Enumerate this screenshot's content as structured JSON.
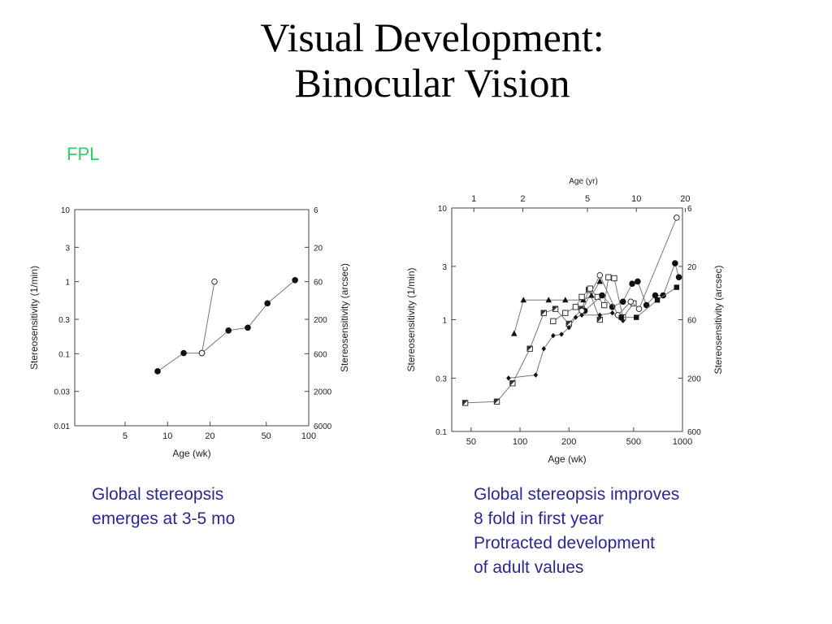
{
  "slide": {
    "title_line1": "Visual Development:",
    "title_line2": "Binocular Vision",
    "method_label": "FPL",
    "caption_left": [
      "Global stereopsis",
      "emerges at 3-5 mo"
    ],
    "caption_right": [
      "Global stereopsis improves",
      "8 fold in first year",
      "Protracted development",
      "of adult values"
    ]
  },
  "chart_data": [
    {
      "type": "line",
      "xlabel": "Age (wk)",
      "ylabel": "Stereosensitivity (1/min)",
      "ylabel_right": "Stereosensitivity (arcsec)",
      "xscale": "log",
      "yscale": "log",
      "xlim": [
        2.2,
        100
      ],
      "ylim": [
        0.01,
        10
      ],
      "x_ticks": [
        5,
        10,
        20,
        50,
        100
      ],
      "x_tick_labels": [
        "5",
        "10",
        "20",
        "50",
        "100"
      ],
      "y_ticks": [
        10,
        3,
        1,
        0.3,
        0.1,
        0.03,
        0.01
      ],
      "y_tick_labels": [
        "10",
        "3",
        "1",
        "0.3",
        "0.1",
        "0.03",
        "0.01"
      ],
      "y_right_tick_labels": [
        "6",
        "20",
        "60",
        "200",
        "600",
        "2000",
        "6000"
      ],
      "grid": false,
      "series": [
        {
          "marker": "filled-circle",
          "x": [
            8.5,
            13,
            17.5,
            27,
            37,
            51,
            80
          ],
          "y": [
            0.057,
            0.102,
            0.102,
            0.21,
            0.23,
            0.5,
            1.05
          ]
        },
        {
          "marker": "open-circle",
          "x": [
            17.5,
            21.5
          ],
          "y": [
            0.102,
            1.0
          ]
        }
      ]
    },
    {
      "type": "line",
      "xlabel": "Age (wk)",
      "xlabel_top": "Age (yr)",
      "ylabel": "Stereosensitivity (1/min)",
      "ylabel_right": "Stereosensitivity (arcsec)",
      "xscale": "log",
      "yscale": "log",
      "xlim": [
        38,
        1000
      ],
      "ylim": [
        0.1,
        10
      ],
      "x_ticks": [
        50,
        100,
        200,
        500,
        1000
      ],
      "x_tick_labels": [
        "50",
        "100",
        "200",
        "500",
        "1000"
      ],
      "x_top_ticks": [
        52,
        104,
        260,
        520,
        1040
      ],
      "x_top_tick_labels": [
        "1",
        "2",
        "5",
        "10",
        "20"
      ],
      "y_ticks": [
        10,
        3,
        1,
        0.3,
        0.1
      ],
      "y_tick_labels": [
        "10",
        "3",
        "1",
        "0.3",
        "0.1"
      ],
      "y_right_tick_labels": [
        "6",
        "20",
        "60",
        "200",
        "600"
      ],
      "grid": false,
      "series": [
        {
          "marker": "half-square",
          "x": [
            46,
            72,
            90,
            115,
            140,
            165,
            200,
            240,
            265,
            310
          ],
          "y": [
            0.18,
            0.185,
            0.27,
            0.55,
            1.15,
            1.25,
            0.92,
            1.25,
            1.85,
            1.0
          ]
        },
        {
          "marker": "triangle",
          "x": [
            92,
            105,
            150,
            190,
            245,
            275,
            310
          ],
          "y": [
            0.75,
            1.5,
            1.5,
            1.5,
            1.5,
            1.65,
            2.2
          ]
        },
        {
          "marker": "diamond",
          "x": [
            85,
            125,
            140,
            160,
            180,
            200,
            220,
            240,
            310,
            370,
            430
          ],
          "y": [
            0.3,
            0.32,
            0.55,
            0.72,
            0.74,
            0.85,
            1.05,
            1.1,
            1.1,
            1.15,
            0.98
          ]
        },
        {
          "marker": "open-square",
          "x": [
            160,
            190,
            220,
            240,
            270,
            300,
            330,
            350,
            380,
            430,
            500
          ],
          "y": [
            0.97,
            1.15,
            1.3,
            1.6,
            1.9,
            1.6,
            1.35,
            2.4,
            2.35,
            1.05,
            1.4
          ]
        },
        {
          "marker": "filled-circle",
          "x": [
            250,
            320,
            370,
            430,
            490,
            530,
            600,
            680,
            760,
            900,
            950
          ],
          "y": [
            1.2,
            1.65,
            1.3,
            1.45,
            2.1,
            2.2,
            1.35,
            1.65,
            1.65,
            3.2,
            2.4
          ]
        },
        {
          "marker": "open-circle",
          "x": [
            240,
            310,
            400,
            480,
            540,
            920
          ],
          "y": [
            1.2,
            2.5,
            1.1,
            1.45,
            1.25,
            8.2
          ]
        },
        {
          "marker": "filled-square",
          "x": [
            420,
            520,
            700,
            920
          ],
          "y": [
            1.05,
            1.05,
            1.5,
            1.95
          ]
        }
      ]
    }
  ]
}
